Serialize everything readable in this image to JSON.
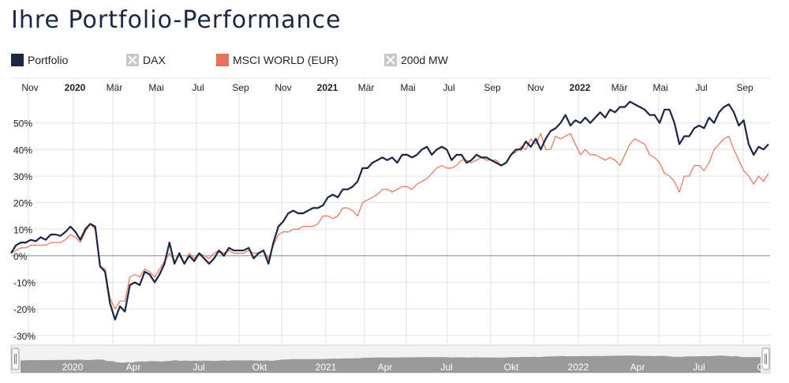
{
  "page": {
    "title": "Ihre Portfolio-Performance"
  },
  "legend": [
    {
      "label": "Portfolio",
      "color": "#1c2541",
      "enabled": true
    },
    {
      "label": "DAX",
      "color": "#c8c8c8",
      "enabled": false
    },
    {
      "label": "MSCI WORLD (EUR)",
      "color": "#e8715a",
      "enabled": true
    },
    {
      "label": "200d MW",
      "color": "#c8c8c8",
      "enabled": false
    }
  ],
  "chart_data": {
    "type": "line",
    "x_range": [
      "2019-11",
      "2022-10"
    ],
    "x_ticks": [
      {
        "label": "Nov",
        "bold": false
      },
      {
        "label": "2020",
        "bold": true
      },
      {
        "label": "Mär",
        "bold": false
      },
      {
        "label": "Mai",
        "bold": false
      },
      {
        "label": "Jul",
        "bold": false
      },
      {
        "label": "Sep",
        "bold": false
      },
      {
        "label": "Nov",
        "bold": false
      },
      {
        "label": "2021",
        "bold": true
      },
      {
        "label": "Mär",
        "bold": false
      },
      {
        "label": "Mai",
        "bold": false
      },
      {
        "label": "Jul",
        "bold": false
      },
      {
        "label": "Sep",
        "bold": false
      },
      {
        "label": "Nov",
        "bold": false
      },
      {
        "label": "2022",
        "bold": true
      },
      {
        "label": "Mär",
        "bold": false
      },
      {
        "label": "Mai",
        "bold": false
      },
      {
        "label": "Jul",
        "bold": false
      },
      {
        "label": "Sep",
        "bold": false
      }
    ],
    "y_ticks": [
      "50%",
      "40%",
      "30%",
      "20%",
      "10%",
      "0%",
      "-10%",
      "-20%",
      "-30%"
    ],
    "y_tick_values": [
      50,
      40,
      30,
      20,
      10,
      0,
      -10,
      -20,
      -30
    ],
    "ylim": [
      -33,
      60
    ],
    "grid": true,
    "series": [
      {
        "name": "Portfolio",
        "color": "#1c2541",
        "values": [
          1,
          4,
          5,
          5,
          6,
          5.5,
          7,
          6,
          8,
          8,
          7.5,
          9,
          11,
          9,
          6,
          10,
          12,
          11,
          -4,
          -6,
          -18,
          -24,
          -19,
          -21,
          -11,
          -10,
          -11,
          -6,
          -7,
          -10,
          -7,
          -3,
          5,
          -3,
          1,
          -3,
          0,
          -2,
          1,
          -1,
          -3,
          -1,
          2,
          0,
          3,
          2,
          2,
          2,
          3,
          -1,
          1,
          2,
          -3,
          5,
          11,
          13,
          16,
          17,
          16,
          16,
          17,
          18,
          18,
          19,
          22,
          23,
          22,
          25,
          25,
          26,
          28,
          33,
          33,
          35,
          36,
          37,
          36,
          37,
          35,
          38,
          38,
          37,
          38,
          40,
          41,
          38,
          40,
          41,
          40,
          36,
          38,
          38,
          35,
          36,
          38,
          37,
          37,
          36,
          35,
          34,
          35,
          38,
          40,
          40,
          43,
          41,
          44,
          40,
          44,
          47,
          48,
          50,
          53,
          49,
          51,
          50,
          52,
          50,
          52,
          54,
          52,
          55,
          54,
          56,
          56,
          58,
          57,
          56,
          55,
          53,
          53,
          50,
          55,
          55,
          50,
          42,
          45,
          45,
          48,
          49,
          48,
          52,
          50,
          54,
          56,
          57,
          54,
          49,
          51,
          42,
          38,
          41,
          40,
          42
        ]
      },
      {
        "name": "MSCI WORLD (EUR)",
        "color": "#e8715a",
        "values": [
          1,
          2,
          3,
          3,
          4,
          4,
          4,
          4,
          5,
          5,
          5,
          6,
          8,
          7,
          5,
          9,
          12,
          10,
          -4,
          -5,
          -16,
          -20,
          -17,
          -17,
          -8,
          -7,
          -8,
          -5,
          -6,
          -8,
          -5,
          -2,
          1,
          -2,
          0,
          -3,
          1,
          -1,
          1,
          0,
          -1,
          1,
          2,
          1,
          2,
          1,
          1,
          1,
          2,
          1,
          1,
          2,
          -1,
          4,
          8,
          9,
          9,
          10,
          10,
          11,
          11,
          11,
          12,
          15,
          15,
          14,
          15,
          18,
          18,
          17,
          15,
          20,
          21,
          22,
          23,
          25,
          25,
          24,
          25,
          26,
          26,
          25,
          27,
          28,
          29,
          31,
          33,
          34,
          33,
          33,
          34,
          36,
          36,
          35,
          36,
          37,
          36,
          36,
          36,
          34,
          35,
          38,
          39,
          41,
          40,
          44,
          42,
          46,
          40,
          40,
          45,
          44,
          45,
          46,
          42,
          38,
          40,
          38,
          38,
          37,
          36,
          37,
          36,
          34,
          38,
          42,
          44,
          43,
          42,
          38,
          37,
          35,
          31,
          30,
          28,
          24,
          30,
          30,
          34,
          34,
          32,
          35,
          40,
          42,
          44,
          45,
          40,
          36,
          32,
          30,
          27,
          30,
          28,
          31
        ]
      }
    ]
  },
  "navigator": {
    "labels": [
      "2020",
      "Apr",
      "Jul",
      "Okt",
      "2021",
      "Apr",
      "Jul",
      "Okt",
      "2022",
      "Apr",
      "Jul",
      "O"
    ]
  }
}
